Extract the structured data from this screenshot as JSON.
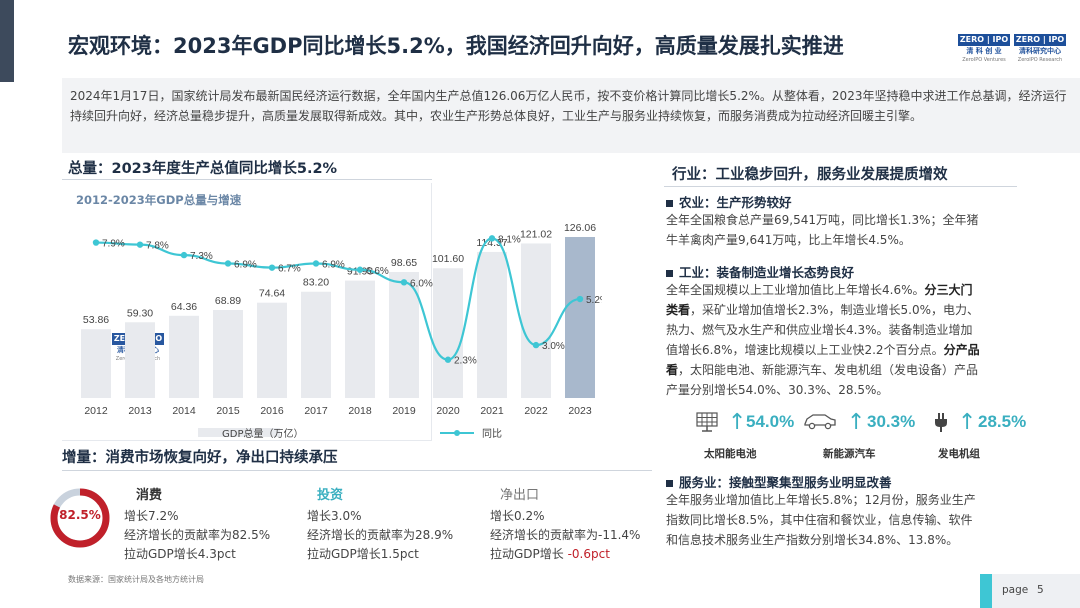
{
  "title": "宏观环境：2023年GDP同比增长5.2%，我国经济回升向好，高质量发展扎实推进",
  "logos": [
    {
      "top": "ZERO | IPO",
      "mid": "清 科 创 业",
      "bot": "ZeroIPO Ventures"
    },
    {
      "top": "ZERO | IPO",
      "mid": "清科研究中心",
      "bot": "ZeroIPO Research"
    }
  ],
  "intro": "2024年1月17日，国家统计局发布最新国民经济运行数据，全年国内生产总值126.06万亿人民币，按不变价格计算同比增长5.2%。从整体看，2023年坚持稳中求进工作总基调，经济运行持续回升向好，经济总量稳步提升，高质量发展取得新成效。其中，农业生产形势总体良好，工业生产与服务业持续恢复，而服务消费成为拉动经济回暖主引擎。",
  "left_section": {
    "heading": "总量：2023年度生产总值同比增长5.2%",
    "chart_title": "2012-2023年GDP总量与增速"
  },
  "watermark": {
    "top": "ZERO | IPO",
    "mid": "清科研究中心",
    "bot": "ZeroIPO Research"
  },
  "chart_data": {
    "type": "bar",
    "categories": [
      "2012",
      "2013",
      "2014",
      "2015",
      "2016",
      "2017",
      "2018",
      "2019",
      "2020",
      "2021",
      "2022",
      "2023"
    ],
    "series": [
      {
        "name": "GDP总量（万亿）",
        "type": "bar",
        "color": "#e8eaee",
        "highlight_color": "#a8b8cc",
        "values": [
          53.86,
          59.3,
          64.36,
          68.89,
          74.64,
          83.2,
          91.93,
          98.65,
          101.6,
          114.37,
          121.02,
          126.06
        ],
        "labels": [
          "53.86",
          "59.30",
          "64.36",
          "68.89",
          "74.64",
          "83.20",
          "91.93",
          "98.65",
          "101.60",
          "114.37",
          "121.02",
          "126.06"
        ]
      },
      {
        "name": "同比",
        "type": "line",
        "color": "#3ec6d4",
        "values": [
          7.9,
          7.8,
          7.3,
          6.9,
          6.7,
          6.9,
          6.6,
          6.0,
          2.3,
          8.1,
          3.0,
          5.2
        ],
        "labels": [
          "7.9%",
          "7.8%",
          "7.3%",
          "6.9%",
          "6.7%",
          "6.9%",
          "6.6%",
          "6.0%",
          "2.3%",
          "8.1%",
          "3.0%",
          "5.2%"
        ]
      }
    ],
    "legend": [
      "GDP总量（万亿）",
      "同比"
    ],
    "legend_placement": "bottom",
    "grid": false
  },
  "increment": {
    "heading": "增量：消费市场恢复向好，净出口持续承压",
    "donut_value": 0.825,
    "donut_label": "82.5%",
    "cards": [
      {
        "title": "消费",
        "color": "#1f2f45",
        "l1": "增长7.2%",
        "l2": "经济增长的贡献率为82.5%",
        "l3": "拉动GDP增长4.3pct",
        "l3_neg": ""
      },
      {
        "title": "投资",
        "color": "#3aafc0",
        "l1": "增长3.0%",
        "l2": "经济增长的贡献率为28.9%",
        "l3": "拉动GDP增长1.5pct",
        "l3_neg": ""
      },
      {
        "title": "净出口",
        "color": "#777777",
        "l1": "增长0.2%",
        "l2": "经济增长的贡献率为-11.4%",
        "l3": "拉动GDP增长 ",
        "l3_neg": "-0.6pct"
      }
    ]
  },
  "source": "数据来源：国家统计局及各地方统计局",
  "right_section": {
    "heading": "行业：工业稳步回升，服务业发展提质增效",
    "agri": {
      "title": "农业：生产形势较好",
      "p1": "全年全国粮食总产量69,541万吨，同比增长1.3%；全年猪",
      "p2": "牛羊禽肉产量9,641万吨，比上年增长4.5%。"
    },
    "industry": {
      "title": "工业：装备制造业增长态势良好",
      "lines": [
        [
          "全年全国规模以上工业增加值比上年增长4.6%。",
          "分三大门"
        ],
        [
          "类看",
          "，采矿业增加值增长2.3%，制造业增长5.0%，电力、"
        ],
        [
          "热力、燃气及水生产和供应业增长4.3%。装备制造业增加",
          ""
        ],
        [
          "值增长6.8%，增速比规模以上工业快2.2个百分点。",
          "分产品"
        ],
        [
          "看",
          "，太阳能电池、新能源汽车、发电机组（发电设备）产品"
        ],
        [
          "产量分别增长54.0%、30.3%、28.5%。",
          ""
        ]
      ]
    },
    "products": [
      {
        "icon": "solar-panel-icon",
        "pct": "54.0%",
        "label": "太阳能电池"
      },
      {
        "icon": "car-icon",
        "pct": "30.3%",
        "label": "新能源汽车"
      },
      {
        "icon": "plug-icon",
        "pct": "28.5%",
        "label": "发电机组"
      }
    ],
    "service": {
      "title": "服务业：接触型聚集型服务业明显改善",
      "lines": [
        "全年服务业增加值比上年增长5.8%；12月份，服务业生产",
        "指数同比增长8.5%，其中住宿和餐饮业，信息传输、软件",
        "和信息技术服务业生产指数分别增长34.8%、13.8%。"
      ]
    }
  },
  "page": {
    "label": "page",
    "num": "5"
  }
}
